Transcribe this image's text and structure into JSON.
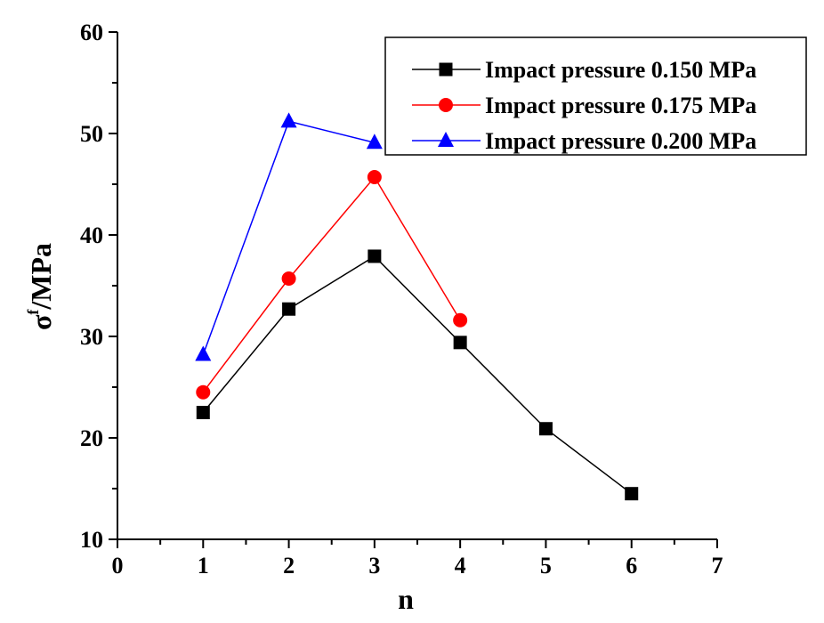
{
  "chart_data": {
    "type": "line",
    "title": "",
    "xlabel": "n",
    "ylabel_main": "σ",
    "ylabel_sup": "f",
    "ylabel_unit": "/MPa",
    "xlim": [
      0,
      7
    ],
    "ylim": [
      10,
      60
    ],
    "xticks": [
      0,
      1,
      2,
      3,
      4,
      5,
      6,
      7
    ],
    "yticks": [
      10,
      20,
      30,
      40,
      50,
      60
    ],
    "grid": false,
    "legend_position": "top-right",
    "series": [
      {
        "name": "Impact pressure 0.150 MPa",
        "color": "#000000",
        "marker": "square",
        "x": [
          1,
          2,
          3,
          4,
          5,
          6
        ],
        "y": [
          22.5,
          32.7,
          37.9,
          29.4,
          20.9,
          14.5
        ]
      },
      {
        "name": "Impact pressure 0.175 MPa",
        "color": "#ff0000",
        "marker": "circle",
        "x": [
          1,
          2,
          3,
          4
        ],
        "y": [
          24.5,
          35.7,
          45.7,
          31.6
        ]
      },
      {
        "name": "Impact pressure 0.200 MPa",
        "color": "#0000ff",
        "marker": "triangle",
        "x": [
          1,
          2,
          3
        ],
        "y": [
          28.2,
          51.2,
          49.1
        ]
      }
    ]
  }
}
